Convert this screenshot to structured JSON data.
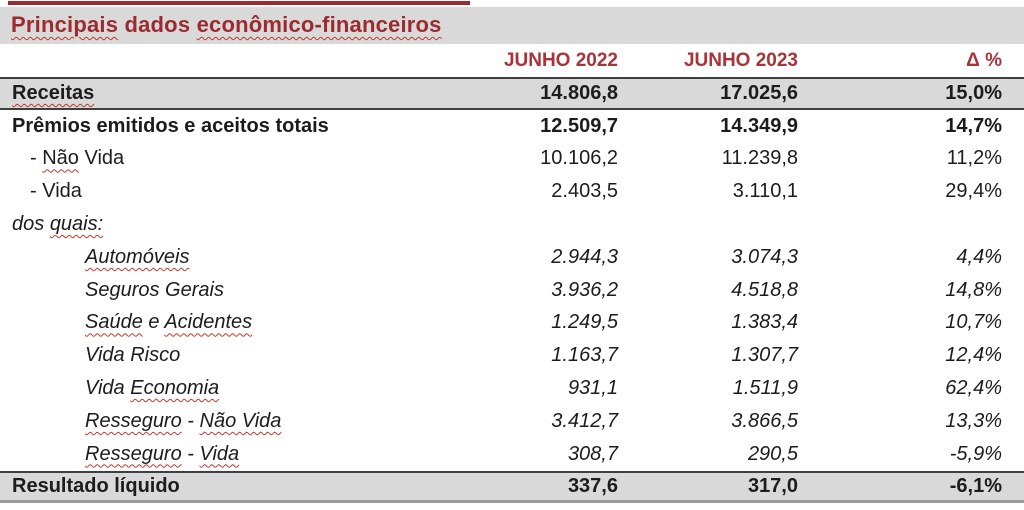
{
  "title": {
    "segments": [
      {
        "text": "Principais",
        "wavy": true
      },
      {
        "text": " dados ",
        "wavy": false
      },
      {
        "text": "econômico-financeiros",
        "wavy": true
      }
    ]
  },
  "header": {
    "col_2022": "JUNHO 2022",
    "col_2023": "JUNHO 2023",
    "col_delta": "Δ %"
  },
  "colors": {
    "title_red": "#9c2b2f",
    "header_red": "#a93338",
    "wavy_red": "#c0392b",
    "gray_band": "#d9d9d9",
    "dark_line": "#3f3f3f",
    "bottom_line": "#9a9a9a"
  },
  "table": {
    "rows": [
      {
        "name": "receitas",
        "style": "gray",
        "segments": [
          {
            "text": "Receitas",
            "wavy": true
          }
        ],
        "v2022": "14.806,8",
        "v2023": "17.025,6",
        "delta": "15,0%"
      },
      {
        "name": "premios-emitidos-aceitos-totais",
        "style": "bold",
        "segments": [
          {
            "text": "Prêmios emitidos e aceitos totais"
          }
        ],
        "v2022": "12.509,7",
        "v2023": "14.349,9",
        "delta": "14,7%"
      },
      {
        "name": "nao-vida",
        "style": "indent1",
        "segments": [
          {
            "text": "- "
          },
          {
            "text": "Não",
            "wavy": true
          },
          {
            "text": " Vida"
          }
        ],
        "v2022": "10.106,2",
        "v2023": "11.239,8",
        "delta": "11,2%"
      },
      {
        "name": "vida",
        "style": "indent1",
        "segments": [
          {
            "text": "- Vida"
          }
        ],
        "v2022": "2.403,5",
        "v2023": "3.110,1",
        "delta": "29,4%"
      },
      {
        "name": "dos-quais",
        "style": "italic",
        "segments": [
          {
            "text": "dos "
          },
          {
            "text": "quais:",
            "wavy": true
          }
        ],
        "v2022": "",
        "v2023": "",
        "delta": ""
      },
      {
        "name": "automoveis",
        "style": "italic indent2",
        "segments": [
          {
            "text": "Automóveis",
            "wavy": true
          }
        ],
        "v2022": "2.944,3",
        "v2023": "3.074,3",
        "delta": "4,4%"
      },
      {
        "name": "seguros-gerais",
        "style": "italic indent2",
        "segments": [
          {
            "text": "Seguros Gerais"
          }
        ],
        "v2022": "3.936,2",
        "v2023": "4.518,8",
        "delta": "14,8%"
      },
      {
        "name": "saude-e-acidentes",
        "style": "italic indent2",
        "segments": [
          {
            "text": "Saúde",
            "wavy": true
          },
          {
            "text": " e "
          },
          {
            "text": "Acidentes",
            "wavy": true
          }
        ],
        "v2022": "1.249,5",
        "v2023": "1.383,4",
        "delta": "10,7%"
      },
      {
        "name": "vida-risco",
        "style": "italic indent2",
        "segments": [
          {
            "text": "Vida Risco"
          }
        ],
        "v2022": "1.163,7",
        "v2023": "1.307,7",
        "delta": "12,4%"
      },
      {
        "name": "vida-economia",
        "style": "italic indent2",
        "segments": [
          {
            "text": "Vida "
          },
          {
            "text": "Economia",
            "wavy": true
          }
        ],
        "v2022": "931,1",
        "v2023": "1.511,9",
        "delta": "62,4%"
      },
      {
        "name": "resseguro-nao-vida",
        "style": "italic indent2",
        "segments": [
          {
            "text": "Resseguro",
            "wavy": true
          },
          {
            "text": " - "
          },
          {
            "text": "Não Vida",
            "wavy": true
          }
        ],
        "v2022": "3.412,7",
        "v2023": "3.866,5",
        "delta": "13,3%"
      },
      {
        "name": "resseguro-vida",
        "style": "italic indent2",
        "segments": [
          {
            "text": "Resseguro",
            "wavy": true
          },
          {
            "text": " - "
          },
          {
            "text": "Vida",
            "wavy": true
          }
        ],
        "v2022": "308,7",
        "v2023": "290,5",
        "delta": "-5,9%"
      },
      {
        "name": "resultado-liquido",
        "style": "gray last",
        "segments": [
          {
            "text": "Resultado líquido"
          }
        ],
        "v2022": "337,6",
        "v2023": "317,0",
        "delta": "-6,1%"
      }
    ]
  }
}
